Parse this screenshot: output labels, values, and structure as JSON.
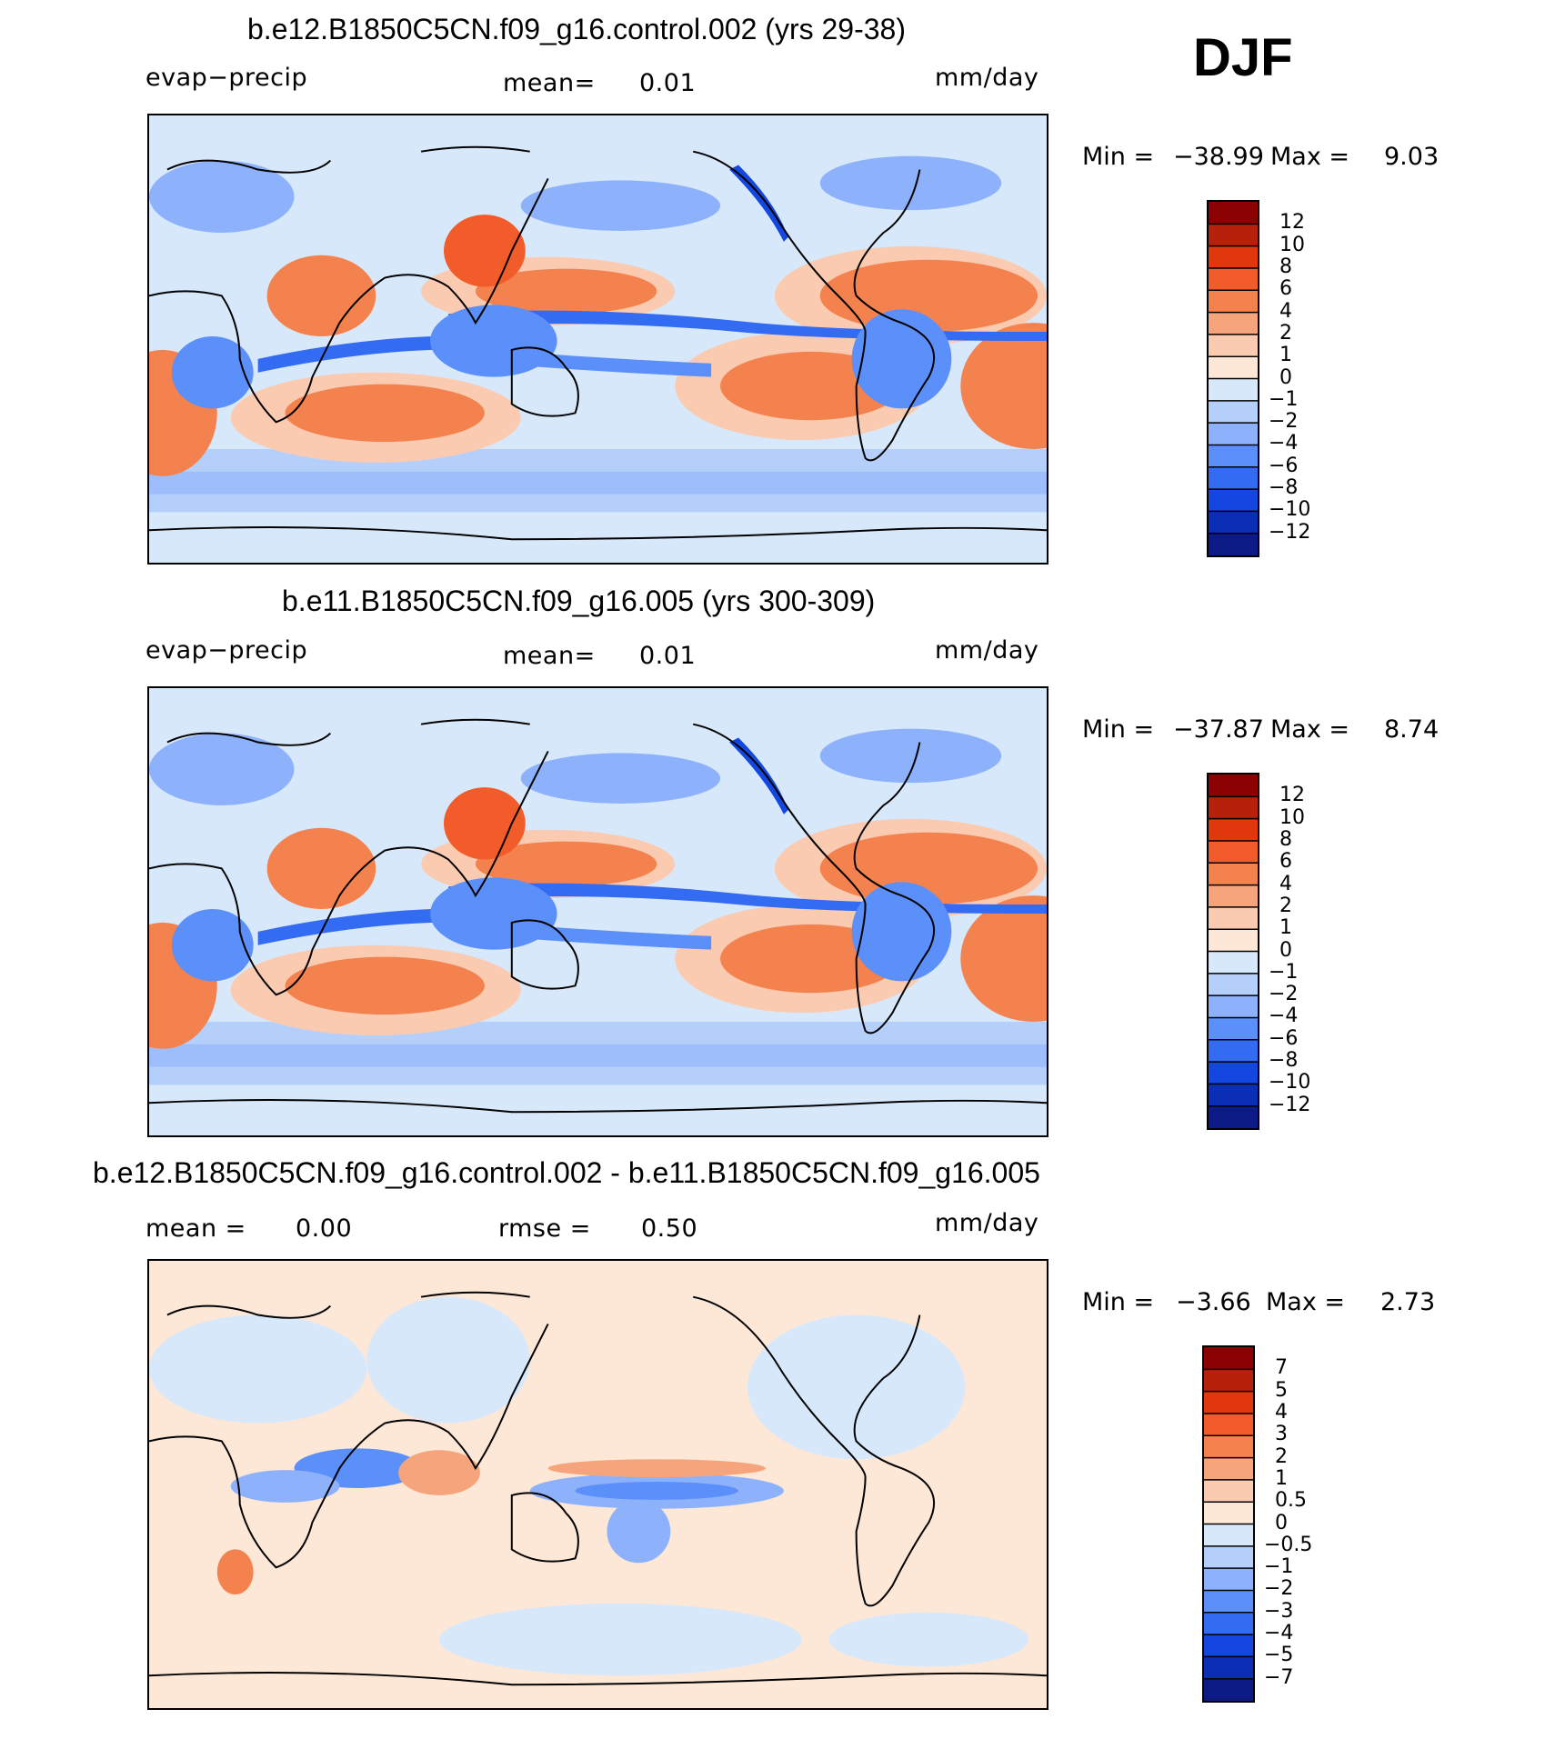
{
  "season": "DJF",
  "panels": [
    {
      "id": "p1",
      "title": "b.e12.B1850C5CN.f09_g16.control.002 (yrs 29-38)",
      "left_label": "evap−precip",
      "mid_label_1": "mean=",
      "mid_value_1": "0.01",
      "units": "mm/day",
      "min_label": "Min  =",
      "min_value": "−38.99",
      "max_label": "Max  =",
      "max_value": "9.03",
      "colorbar": [
        "12",
        "10",
        "8",
        "6",
        "4",
        "2",
        "1",
        "0",
        "−1",
        "−2",
        "−4",
        "−6",
        "−8",
        "−10",
        "−12"
      ],
      "colors": [
        "#8b0000",
        "#b7200a",
        "#e0380c",
        "#f25c2a",
        "#f4824f",
        "#f6a47c",
        "#fbcbb1",
        "#fde7d7",
        "#d8e8fb",
        "#b5cffb",
        "#8db2fb",
        "#5b8ffa",
        "#336cf2",
        "#1447df",
        "#0a2eb4",
        "#0b1a84"
      ]
    },
    {
      "id": "p2",
      "title": "b.e11.B1850C5CN.f09_g16.005 (yrs 300-309)",
      "left_label": "evap−precip",
      "mid_label_1": "mean=",
      "mid_value_1": "0.01",
      "units": "mm/day",
      "min_label": "Min  =",
      "min_value": "−37.87",
      "max_label": "Max  =",
      "max_value": "8.74",
      "colorbar": [
        "12",
        "10",
        "8",
        "6",
        "4",
        "2",
        "1",
        "0",
        "−1",
        "−2",
        "−4",
        "−6",
        "−8",
        "−10",
        "−12"
      ],
      "colors": [
        "#8b0000",
        "#b7200a",
        "#e0380c",
        "#f25c2a",
        "#f4824f",
        "#f6a47c",
        "#fbcbb1",
        "#fde7d7",
        "#d8e8fb",
        "#b5cffb",
        "#8db2fb",
        "#5b8ffa",
        "#336cf2",
        "#1447df",
        "#0a2eb4",
        "#0b1a84"
      ]
    },
    {
      "id": "p3",
      "title": "b.e12.B1850C5CN.f09_g16.control.002 - b.e11.B1850C5CN.f09_g16.005",
      "left_label": "mean =",
      "left_value": "0.00",
      "mid_label_1": "rmse =",
      "mid_value_1": "0.50",
      "units": "mm/day",
      "min_label": "Min  =",
      "min_value": "−3.66",
      "max_label": "Max  =",
      "max_value": "2.73",
      "colorbar": [
        "7",
        "5",
        "4",
        "3",
        "2",
        "1",
        "0.5",
        "0",
        "−0.5",
        "−1",
        "−2",
        "−3",
        "−4",
        "−5",
        "−7"
      ],
      "colors": [
        "#8b0000",
        "#b7200a",
        "#e0380c",
        "#f25c2a",
        "#f4824f",
        "#f6a47c",
        "#fbcbb1",
        "#fde7d7",
        "#d8e8fb",
        "#b5cffb",
        "#8db2fb",
        "#5b8ffa",
        "#336cf2",
        "#1447df",
        "#0a2eb4",
        "#0b1a84"
      ]
    }
  ]
}
